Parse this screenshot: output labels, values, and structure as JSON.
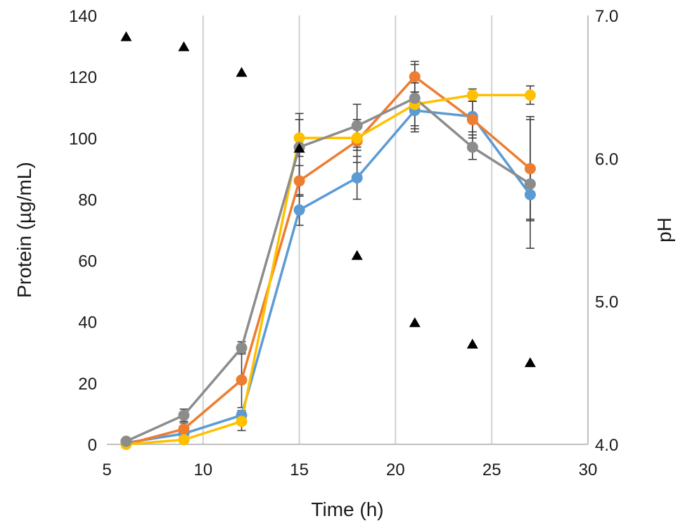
{
  "chart_data": {
    "type": "line",
    "title": "",
    "xlabel": "Time (h)",
    "ylabel": "Protein (µg/mL)",
    "y2label": "pH",
    "xlim": [
      5,
      30
    ],
    "ylim": [
      0,
      140
    ],
    "y2lim": [
      4.0,
      7.0
    ],
    "x_ticks": [
      5,
      10,
      15,
      20,
      25,
      30
    ],
    "x_tick_labels": [
      "5",
      "10",
      "15",
      "20",
      "25",
      "30"
    ],
    "y_ticks": [
      0,
      20,
      40,
      60,
      80,
      100,
      120,
      140
    ],
    "y_tick_labels": [
      "0",
      "20",
      "40",
      "60",
      "80",
      "100",
      "120",
      "140"
    ],
    "y2_ticks": [
      4.0,
      5.0,
      6.0,
      7.0
    ],
    "y2_tick_labels": [
      "4.0",
      "5.0",
      "6.0",
      "7.0"
    ],
    "grid": "vertical",
    "legend": "none",
    "x": [
      6,
      9,
      12,
      15,
      18,
      21,
      24,
      27
    ],
    "series": [
      {
        "name": "blue",
        "color": "#5b9bd5",
        "values": [
          0.5,
          3.5,
          9.5,
          76.5,
          87,
          109,
          107,
          81.5
        ],
        "errors": [
          0.5,
          1,
          1.5,
          5,
          7,
          6,
          5,
          8
        ]
      },
      {
        "name": "orange",
        "color": "#ed7d31",
        "values": [
          0,
          5,
          21,
          86,
          99,
          120,
          106,
          90
        ],
        "errors": [
          0.5,
          2,
          9,
          5,
          7,
          5,
          6,
          17
        ]
      },
      {
        "name": "yellow",
        "color": "#ffc000",
        "values": [
          0,
          1.5,
          7.5,
          100,
          100,
          111,
          114,
          114
        ],
        "errors": [
          0.5,
          1,
          3,
          6,
          4,
          7,
          2,
          3
        ]
      },
      {
        "name": "gray",
        "color": "#8c8c8c",
        "values": [
          1,
          9.5,
          31.5,
          97,
          104,
          113,
          97,
          85
        ],
        "errors": [
          0.5,
          2,
          2,
          11,
          7,
          11,
          4,
          21
        ]
      }
    ],
    "ph_series": {
      "name": "pH",
      "color": "#000000",
      "marker": "triangle",
      "axis": "right",
      "x": [
        6,
        9,
        12,
        15,
        18,
        21,
        24,
        27
      ],
      "values": [
        6.85,
        6.78,
        6.6,
        6.07,
        5.32,
        4.85,
        4.7,
        4.57
      ]
    }
  }
}
